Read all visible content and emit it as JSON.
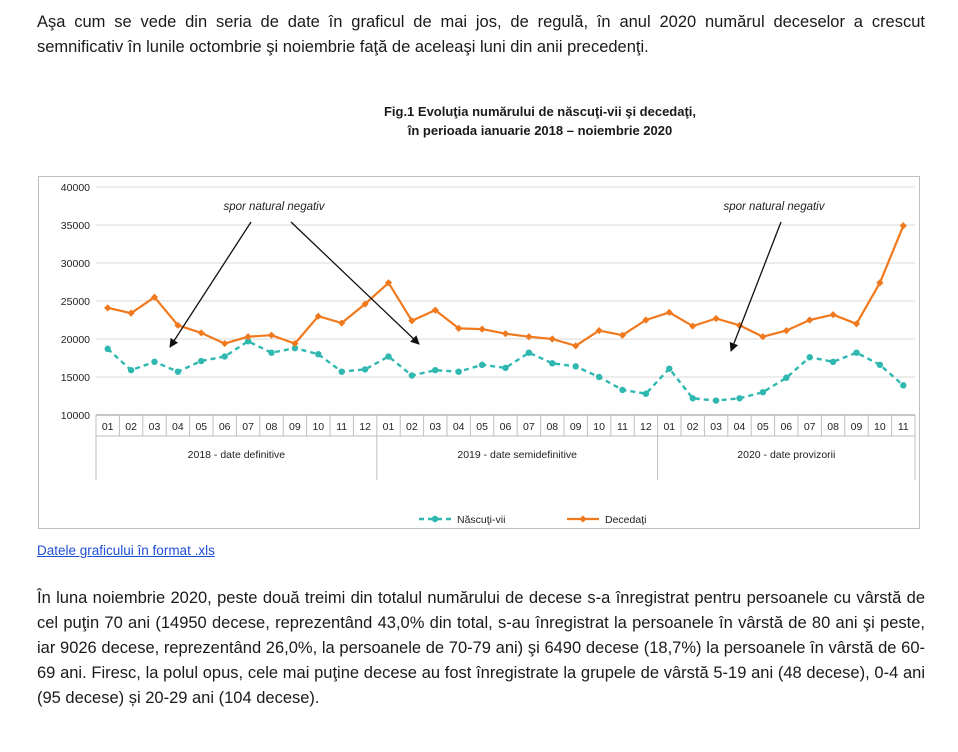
{
  "intro_text": "Aşa cum se vede din seria de date în graficul de mai jos, de regulă, în anul 2020 numărul deceselor a crescut semnificativ în lunile octombrie şi noiembrie faţă de aceleaşi luni din anii precedenţi.",
  "figure": {
    "title_line1": "Fig.1 Evoluţia numărului de născuţi-vii şi decedaţi,",
    "title_line2": "în perioada ianuarie 2018 – noiembrie 2020"
  },
  "link_text": "Datele graficului în format .xls",
  "outro_text": "În luna noiembrie 2020, peste două treimi din totalul numărului de decese s-a înregistrat pentru persoanele cu vârstă de cel puţin 70 ani (14950 decese, reprezentând 43,0% din total, s-au înregistrat la persoanele în vârstă de 80 ani şi peste, iar 9026 decese, reprezentând 26,0%, la persoanele de 70-79 ani) şi 6490 decese (18,7%) la persoanele în vârstă de 60-69 ani. Firesc, la polul opus, cele mai puţine decese au fost înregistrate la grupele de vârstă 5-19 ani (48 decese), 0-4 ani (95 decese) și 20-29 ani (104 decese).",
  "chart_data": {
    "type": "line",
    "title": "Fig.1 Evoluţia numărului de născuţi-vii şi decedaţi, în perioada ianuarie 2018 – noiembrie 2020",
    "categories": [
      "01",
      "02",
      "03",
      "04",
      "05",
      "06",
      "07",
      "08",
      "09",
      "10",
      "11",
      "12",
      "01",
      "02",
      "03",
      "04",
      "05",
      "06",
      "07",
      "08",
      "09",
      "10",
      "11",
      "12",
      "01",
      "02",
      "03",
      "04",
      "05",
      "06",
      "07",
      "08",
      "09",
      "10",
      "11"
    ],
    "groups": [
      {
        "label": "2018 - date definitive",
        "count": 12
      },
      {
        "label": "2019 - date semidefinitive",
        "count": 12
      },
      {
        "label": "2020 - date provizorii",
        "count": 11
      }
    ],
    "ylim": [
      10000,
      40000
    ],
    "yticks": [
      10000,
      15000,
      20000,
      25000,
      30000,
      35000,
      40000
    ],
    "grid": true,
    "legend_position": "bottom",
    "series": [
      {
        "name": "Născuţi-vii",
        "color": "#2fb8b0",
        "style": "dashed",
        "values": [
          18700,
          15900,
          17000,
          15700,
          17100,
          17700,
          19700,
          18200,
          18800,
          18000,
          15700,
          16000,
          17700,
          15200,
          15900,
          15700,
          16600,
          16200,
          18200,
          16800,
          16400,
          15000,
          13300,
          12800,
          16100,
          12200,
          11900,
          12200,
          13000,
          14900,
          17600,
          17000,
          18200,
          16600,
          13900
        ]
      },
      {
        "name": "Decedaţi",
        "color": "#f0791e",
        "style": "solid",
        "values": [
          24100,
          23400,
          25500,
          21800,
          20800,
          19400,
          20300,
          20500,
          19400,
          23000,
          22100,
          24600,
          27400,
          22400,
          23800,
          21400,
          21300,
          20700,
          20300,
          20000,
          19100,
          21100,
          20500,
          22500,
          23500,
          21700,
          22700,
          21800,
          20300,
          21100,
          22500,
          23200,
          22000,
          27400,
          34900
        ]
      }
    ],
    "annotations": [
      {
        "text": "spor natural negativ"
      },
      {
        "text": "spor natural negativ"
      }
    ]
  }
}
